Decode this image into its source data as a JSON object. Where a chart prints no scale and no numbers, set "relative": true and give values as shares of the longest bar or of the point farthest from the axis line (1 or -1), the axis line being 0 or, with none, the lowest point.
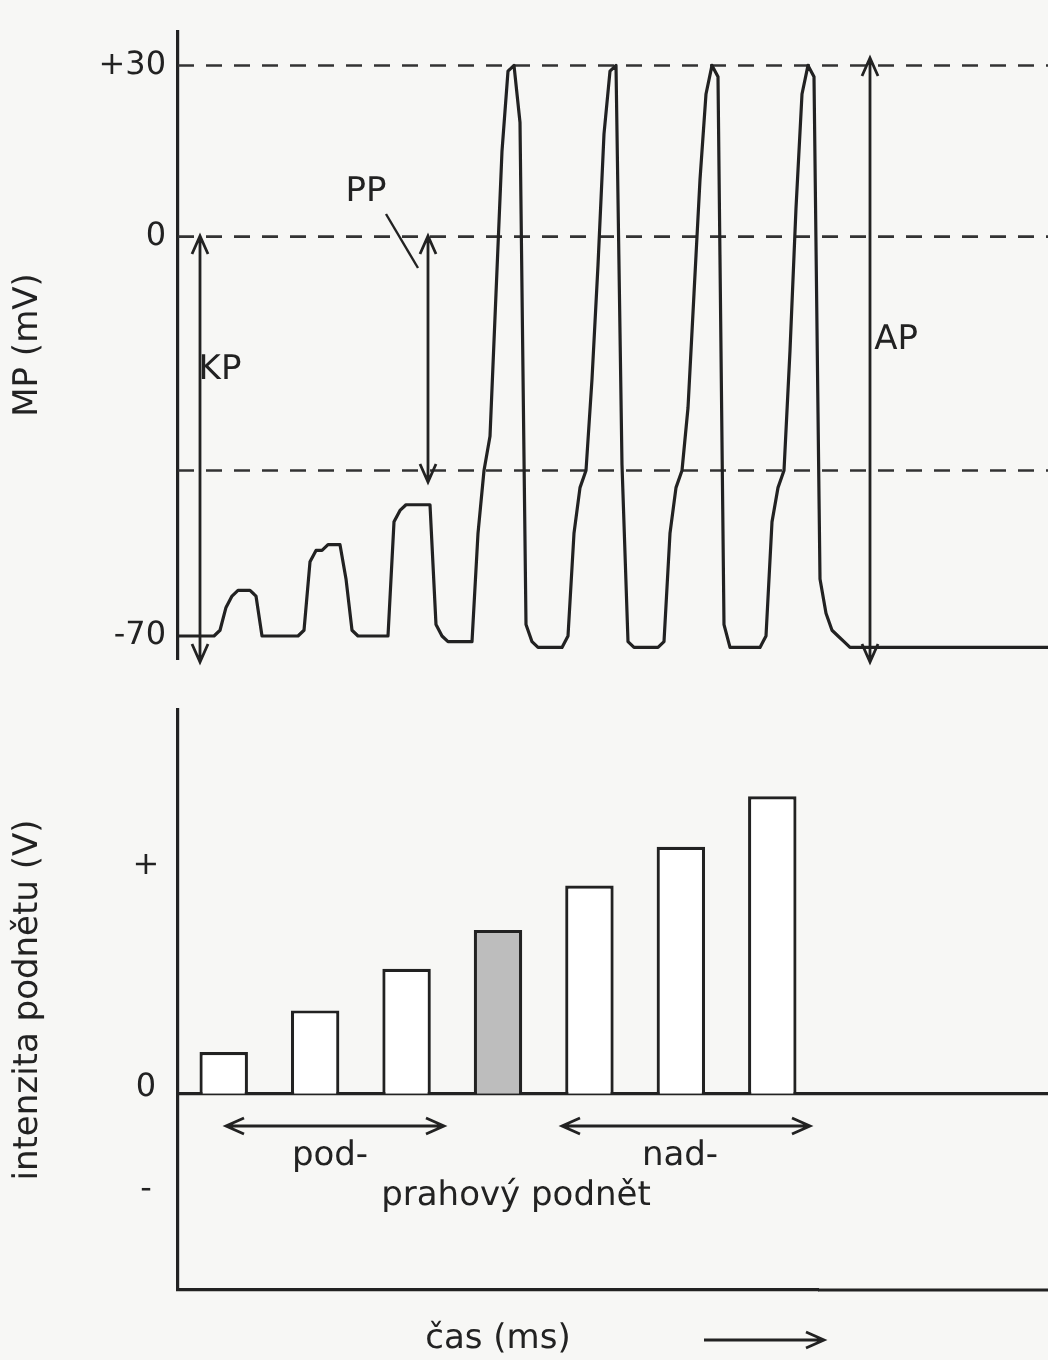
{
  "chart_data": [
    {
      "type": "line",
      "ylabel": "MP (mV)",
      "categories": [
        null,
        null,
        null,
        null,
        null,
        null,
        null,
        null,
        null,
        null,
        null,
        null,
        null,
        null,
        null,
        null,
        null,
        null,
        null,
        null,
        null,
        null,
        null,
        null,
        null,
        null,
        null,
        null,
        null,
        null,
        null,
        null,
        null,
        null,
        null,
        null,
        null,
        null,
        null,
        null,
        null,
        null,
        null,
        null,
        null,
        null,
        null,
        null,
        null,
        null,
        null,
        null,
        null,
        null,
        null,
        null,
        null,
        null,
        null,
        null,
        null,
        null,
        null,
        null,
        null,
        null,
        null,
        null,
        null,
        null,
        null,
        null,
        null,
        null,
        null,
        null,
        null,
        null,
        null,
        null,
        null,
        null,
        null,
        null,
        null,
        null,
        null,
        null,
        null,
        null,
        null,
        null,
        null,
        null,
        null,
        null,
        null,
        null,
        null,
        null,
        null,
        null,
        null,
        null,
        null,
        null,
        null,
        null,
        null,
        null,
        null,
        null,
        null,
        null,
        null,
        null,
        null,
        null,
        null,
        null,
        null,
        null,
        null,
        null,
        null,
        null,
        null,
        null,
        null,
        null,
        null,
        null,
        null,
        null,
        null,
        null,
        null,
        null,
        null,
        null,
        null,
        null,
        null,
        null,
        null,
        null
      ],
      "series": [
        {
          "color": "#222222",
          "values": [
            -70,
            -70,
            -70,
            -70,
            -70,
            -70,
            -70,
            -69,
            -65,
            -63,
            -62,
            -62,
            -62,
            -63,
            -70,
            -70,
            -70,
            -70,
            -70,
            -70,
            -70,
            -69,
            -57,
            -55,
            -55,
            -54,
            -54,
            -54,
            -60,
            -69,
            -70,
            -70,
            -70,
            -70,
            -70,
            -70,
            -50,
            -48,
            -47,
            -47,
            -47,
            -47,
            -47,
            -68,
            -70,
            -71,
            -71,
            -71,
            -71,
            -71,
            -52,
            -41,
            -35,
            -10,
            15,
            29,
            30,
            20,
            -68,
            -71,
            -72,
            -72,
            -72,
            -72,
            -72,
            -70,
            -52,
            -44,
            -41,
            -25,
            -5,
            18,
            29,
            30,
            -40,
            -71,
            -72,
            -72,
            -72,
            -72,
            -72,
            -71,
            -52,
            -44,
            -41,
            -30,
            -10,
            10,
            25,
            30,
            28,
            -68,
            -72,
            -72,
            -72,
            -72,
            -72,
            -72,
            -70,
            -50,
            -44,
            -41,
            -20,
            5,
            25,
            30,
            28,
            -60,
            -66,
            -69,
            -70,
            -71,
            -72,
            -72,
            -72,
            -72,
            -72,
            -72,
            -72,
            -72,
            -72,
            -72,
            -72,
            -72,
            -72,
            -72,
            -72,
            -72,
            -72,
            -72,
            -72,
            -72,
            -72,
            -72,
            -72,
            -72,
            -72,
            -72,
            -72,
            -72,
            -72,
            -72,
            -72,
            -72,
            -72,
            -72
          ]
        }
      ],
      "ylim": [
        -74,
        36
      ],
      "yticks": [
        {
          "value": 30,
          "label": "+30"
        },
        0,
        -70
      ],
      "ref_lines": [
        {
          "axis": "y",
          "value": 30,
          "line_style": "dashed"
        },
        {
          "axis": "y",
          "value": 0,
          "line_style": "dashed"
        },
        {
          "axis": "y",
          "value": -41,
          "line_style": "dashed"
        }
      ],
      "annotations": [
        "KP",
        "PP",
        "AP"
      ],
      "marker": "none",
      "tick_labels": "y"
    },
    {
      "type": "bar",
      "ylabel": "intenzita podnětu (V)",
      "xlabel": "čas (ms)",
      "categories": [
        null,
        null,
        null,
        null,
        null,
        null,
        null
      ],
      "values": [
        0.14,
        0.28,
        0.42,
        0.55,
        0.7,
        0.83,
        1
      ],
      "colors": [
        "#ffffff",
        "#ffffff",
        "#ffffff",
        "#bdbdbd",
        "#ffffff",
        "#ffffff",
        "#ffffff"
      ],
      "relative": true,
      "annotations": [
        "pod-",
        "nad-",
        "prahový podnět",
        "+",
        "0",
        "-"
      ],
      "tick_labels": "y"
    }
  ]
}
